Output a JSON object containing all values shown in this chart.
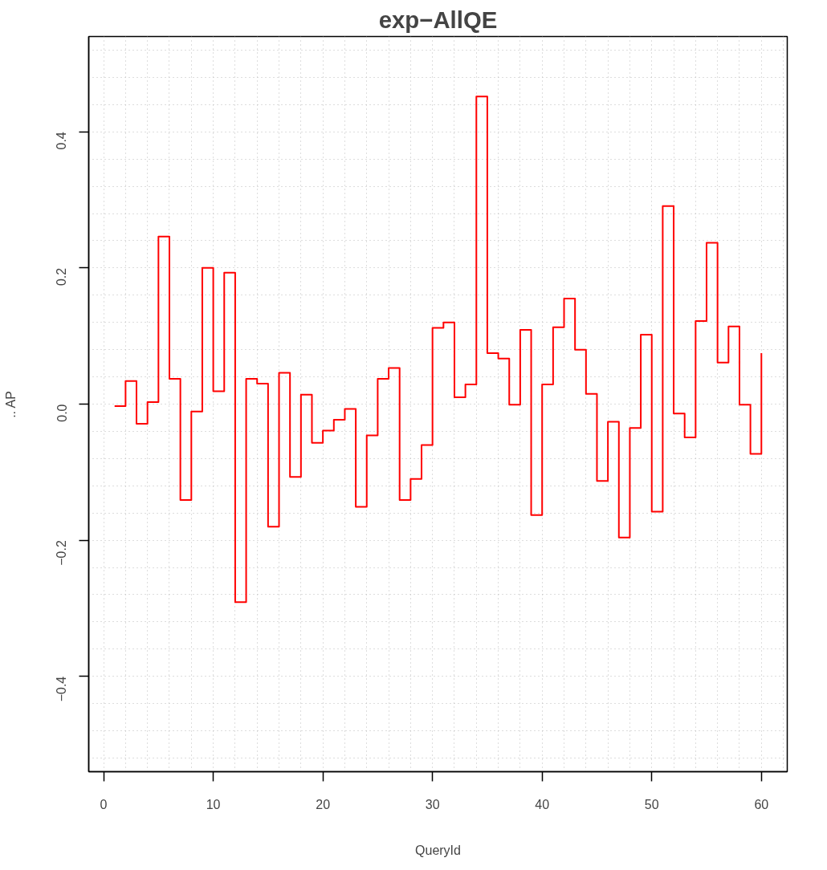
{
  "chart_data": {
    "type": "step",
    "title": "exp−AllQE",
    "xlabel": "QueryId",
    "ylabel": ".. AP",
    "x": [
      1,
      2,
      3,
      4,
      5,
      6,
      7,
      8,
      9,
      10,
      11,
      12,
      13,
      14,
      15,
      16,
      17,
      18,
      19,
      20,
      21,
      22,
      23,
      24,
      25,
      26,
      27,
      28,
      29,
      30,
      31,
      32,
      33,
      34,
      35,
      36,
      37,
      38,
      39,
      40,
      41,
      42,
      43,
      44,
      45,
      46,
      47,
      48,
      49,
      50,
      51,
      52,
      53,
      54,
      55,
      56,
      57,
      58,
      59,
      60
    ],
    "series": [
      {
        "color": "#ff0000",
        "values": [
          -0.003,
          0.034,
          -0.029,
          0.003,
          0.246,
          0.037,
          -0.141,
          -0.011,
          0.2,
          0.019,
          0.193,
          -0.291,
          0.037,
          0.03,
          -0.18,
          0.046,
          -0.107,
          0.014,
          -0.057,
          -0.039,
          -0.023,
          -0.007,
          -0.151,
          -0.046,
          0.037,
          0.053,
          -0.141,
          -0.11,
          -0.06,
          0.112,
          0.12,
          0.01,
          0.029,
          0.452,
          0.075,
          0.067,
          -0.001,
          0.109,
          -0.163,
          0.029,
          0.113,
          0.155,
          0.08,
          0.015,
          -0.113,
          -0.026,
          -0.196,
          -0.035,
          0.102,
          -0.158,
          0.291,
          -0.014,
          -0.049,
          0.122,
          0.237,
          0.061,
          0.114,
          -0.001,
          -0.073,
          0.075
        ]
      }
    ],
    "xlim": [
      -1.36,
      62.36
    ],
    "ylim": [
      -0.54,
      0.54
    ],
    "xticks": [
      0,
      10,
      20,
      30,
      40,
      50,
      60
    ],
    "yticks": [
      {
        "value": -0.4,
        "label": "−0.4"
      },
      {
        "value": -0.2,
        "label": "−0.2"
      },
      {
        "value": 0,
        "label": "0.0"
      },
      {
        "value": 0.2,
        "label": "0.2"
      },
      {
        "value": 0.4,
        "label": "0.4"
      }
    ],
    "grid": true,
    "line_style": "solid"
  }
}
